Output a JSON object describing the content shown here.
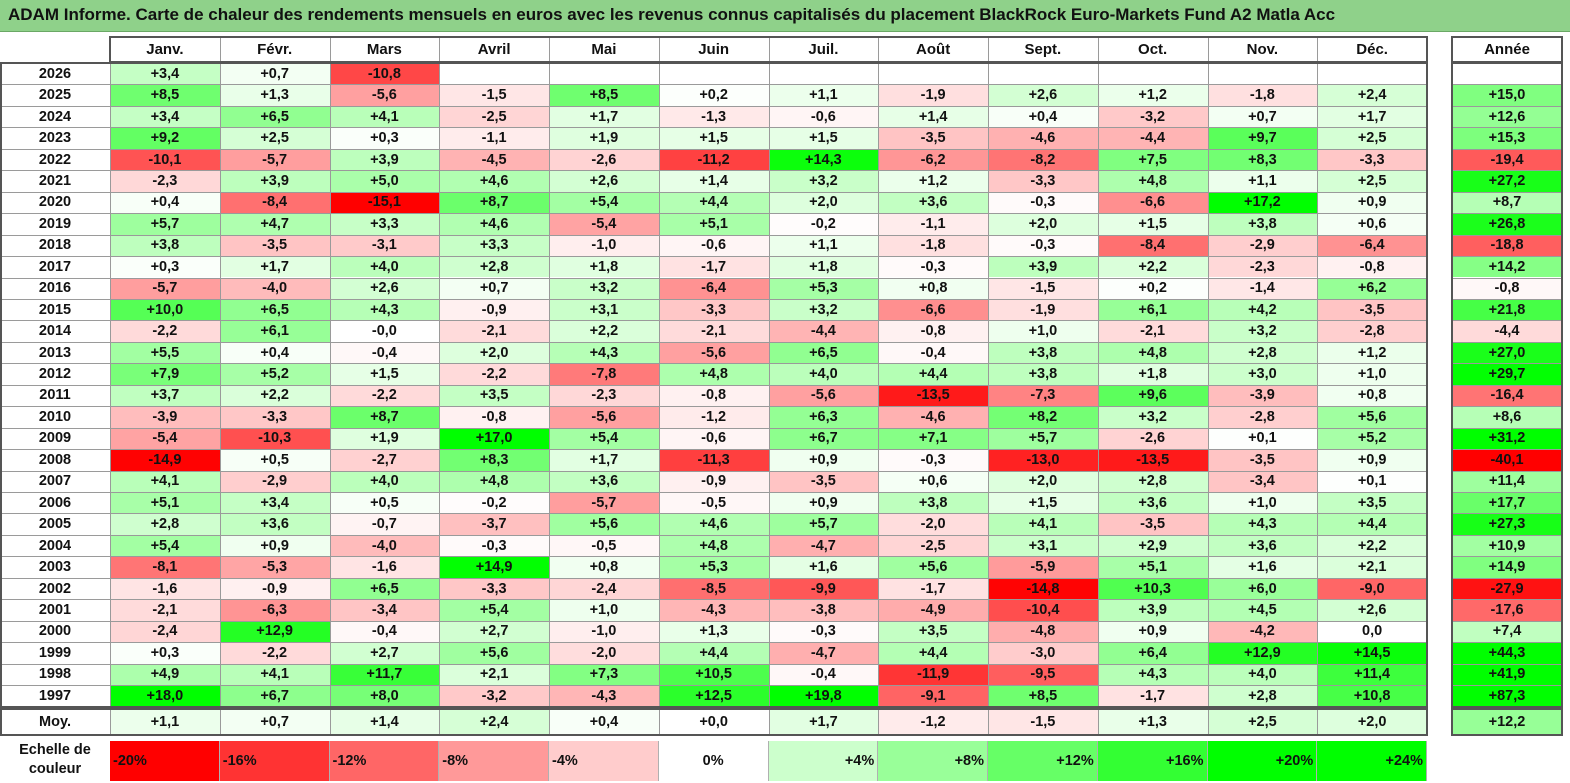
{
  "title": "ADAM Informe. Carte de chaleur des rendements mensuels en euros avec les revenus connus capitalisés du placement BlackRock Euro-Markets Fund A2 Matla Acc",
  "chart_data": {
    "type": "heatmap",
    "title": "ADAM Informe. Carte de chaleur des rendements mensuels en euros avec les revenus connus capitalisés du placement BlackRock Euro-Markets Fund A2 Matla Acc",
    "months": [
      "Janv.",
      "Févr.",
      "Mars",
      "Avril",
      "Mai",
      "Juin",
      "Juil.",
      "Août",
      "Sept.",
      "Oct.",
      "Nov.",
      "Déc."
    ],
    "year_header": "Année",
    "rows": [
      {
        "year": "2026",
        "months": [
          "+3,4",
          "+0,7",
          "-10,8",
          "",
          "",
          "",
          "",
          "",
          "",
          "",
          "",
          ""
        ],
        "annual": ""
      },
      {
        "year": "2025",
        "months": [
          "+8,5",
          "+1,3",
          "-5,6",
          "-1,5",
          "+8,5",
          "+0,2",
          "+1,1",
          "-1,9",
          "+2,6",
          "+1,2",
          "-1,8",
          "+2,4"
        ],
        "annual": "+15,0"
      },
      {
        "year": "2024",
        "months": [
          "+3,4",
          "+6,5",
          "+4,1",
          "-2,5",
          "+1,7",
          "-1,3",
          "-0,6",
          "+1,4",
          "+0,4",
          "-3,2",
          "+0,7",
          "+1,7"
        ],
        "annual": "+12,6"
      },
      {
        "year": "2023",
        "months": [
          "+9,2",
          "+2,5",
          "+0,3",
          "-1,1",
          "+1,9",
          "+1,5",
          "+1,5",
          "-3,5",
          "-4,6",
          "-4,4",
          "+9,7",
          "+2,5"
        ],
        "annual": "+15,3"
      },
      {
        "year": "2022",
        "months": [
          "-10,1",
          "-5,7",
          "+3,9",
          "-4,5",
          "-2,6",
          "-11,2",
          "+14,3",
          "-6,2",
          "-8,2",
          "+7,5",
          "+8,3",
          "-3,3"
        ],
        "annual": "-19,4"
      },
      {
        "year": "2021",
        "months": [
          "-2,3",
          "+3,9",
          "+5,0",
          "+4,6",
          "+2,6",
          "+1,4",
          "+3,2",
          "+1,2",
          "-3,3",
          "+4,8",
          "+1,1",
          "+2,5"
        ],
        "annual": "+27,2"
      },
      {
        "year": "2020",
        "months": [
          "+0,4",
          "-8,4",
          "-15,1",
          "+8,7",
          "+5,4",
          "+4,4",
          "+2,0",
          "+3,6",
          "-0,3",
          "-6,6",
          "+17,2",
          "+0,9"
        ],
        "annual": "+8,7"
      },
      {
        "year": "2019",
        "months": [
          "+5,7",
          "+4,7",
          "+3,3",
          "+4,6",
          "-5,4",
          "+5,1",
          "-0,2",
          "-1,1",
          "+2,0",
          "+1,5",
          "+3,8",
          "+0,6"
        ],
        "annual": "+26,8"
      },
      {
        "year": "2018",
        "months": [
          "+3,8",
          "-3,5",
          "-3,1",
          "+3,3",
          "-1,0",
          "-0,6",
          "+1,1",
          "-1,8",
          "-0,3",
          "-8,4",
          "-2,9",
          "-6,4"
        ],
        "annual": "-18,8"
      },
      {
        "year": "2017",
        "months": [
          "+0,3",
          "+1,7",
          "+4,0",
          "+2,8",
          "+1,8",
          "-1,7",
          "+1,8",
          "-0,3",
          "+3,9",
          "+2,2",
          "-2,3",
          "-0,8"
        ],
        "annual": "+14,2"
      },
      {
        "year": "2016",
        "months": [
          "-5,7",
          "-4,0",
          "+2,6",
          "+0,7",
          "+3,2",
          "-6,4",
          "+5,3",
          "+0,8",
          "-1,5",
          "+0,2",
          "-1,4",
          "+6,2"
        ],
        "annual": "-0,8"
      },
      {
        "year": "2015",
        "months": [
          "+10,0",
          "+6,5",
          "+4,3",
          "-0,9",
          "+3,1",
          "-3,3",
          "+3,2",
          "-6,6",
          "-1,9",
          "+6,1",
          "+4,2",
          "-3,5"
        ],
        "annual": "+21,8"
      },
      {
        "year": "2014",
        "months": [
          "-2,2",
          "+6,1",
          "-0,0",
          "-2,1",
          "+2,2",
          "-2,1",
          "-4,4",
          "-0,8",
          "+1,0",
          "-2,1",
          "+3,2",
          "-2,8"
        ],
        "annual": "-4,4"
      },
      {
        "year": "2013",
        "months": [
          "+5,5",
          "+0,4",
          "-0,4",
          "+2,0",
          "+4,3",
          "-5,6",
          "+6,5",
          "-0,4",
          "+3,8",
          "+4,8",
          "+2,8",
          "+1,2"
        ],
        "annual": "+27,0"
      },
      {
        "year": "2012",
        "months": [
          "+7,9",
          "+5,2",
          "+1,5",
          "-2,2",
          "-7,8",
          "+4,8",
          "+4,0",
          "+4,4",
          "+3,8",
          "+1,8",
          "+3,0",
          "+1,0"
        ],
        "annual": "+29,7"
      },
      {
        "year": "2011",
        "months": [
          "+3,7",
          "+2,2",
          "-2,2",
          "+3,5",
          "-2,3",
          "-0,8",
          "-5,6",
          "-13,5",
          "-7,3",
          "+9,6",
          "-3,9",
          "+0,8"
        ],
        "annual": "-16,4"
      },
      {
        "year": "2010",
        "months": [
          "-3,9",
          "-3,3",
          "+8,7",
          "-0,8",
          "-5,6",
          "-1,2",
          "+6,3",
          "-4,6",
          "+8,2",
          "+3,2",
          "-2,8",
          "+5,6"
        ],
        "annual": "+8,6"
      },
      {
        "year": "2009",
        "months": [
          "-5,4",
          "-10,3",
          "+1,9",
          "+17,0",
          "+5,4",
          "-0,6",
          "+6,7",
          "+7,1",
          "+5,7",
          "-2,6",
          "+0,1",
          "+5,2"
        ],
        "annual": "+31,2"
      },
      {
        "year": "2008",
        "months": [
          "-14,9",
          "+0,5",
          "-2,7",
          "+8,3",
          "+1,7",
          "-11,3",
          "+0,9",
          "-0,3",
          "-13,0",
          "-13,5",
          "-3,5",
          "+0,9"
        ],
        "annual": "-40,1"
      },
      {
        "year": "2007",
        "months": [
          "+4,1",
          "-2,9",
          "+4,0",
          "+4,8",
          "+3,6",
          "-0,9",
          "-3,5",
          "+0,6",
          "+2,0",
          "+2,8",
          "-3,4",
          "+0,1"
        ],
        "annual": "+11,4"
      },
      {
        "year": "2006",
        "months": [
          "+5,1",
          "+3,4",
          "+0,5",
          "-0,2",
          "-5,7",
          "-0,5",
          "+0,9",
          "+3,8",
          "+1,5",
          "+3,6",
          "+1,0",
          "+3,5"
        ],
        "annual": "+17,7"
      },
      {
        "year": "2005",
        "months": [
          "+2,8",
          "+3,6",
          "-0,7",
          "-3,7",
          "+5,6",
          "+4,6",
          "+5,7",
          "-2,0",
          "+4,1",
          "-3,5",
          "+4,3",
          "+4,4"
        ],
        "annual": "+27,3"
      },
      {
        "year": "2004",
        "months": [
          "+5,4",
          "+0,9",
          "-4,0",
          "-0,3",
          "-0,5",
          "+4,8",
          "-4,7",
          "-2,5",
          "+3,1",
          "+2,9",
          "+3,6",
          "+2,2"
        ],
        "annual": "+10,9"
      },
      {
        "year": "2003",
        "months": [
          "-8,1",
          "-5,3",
          "-1,6",
          "+14,9",
          "+0,8",
          "+5,3",
          "+1,6",
          "+5,6",
          "-5,9",
          "+5,1",
          "+1,6",
          "+2,1"
        ],
        "annual": "+14,9"
      },
      {
        "year": "2002",
        "months": [
          "-1,6",
          "-0,9",
          "+6,5",
          "-3,3",
          "-2,4",
          "-8,5",
          "-9,9",
          "-1,7",
          "-14,8",
          "+10,3",
          "+6,0",
          "-9,0"
        ],
        "annual": "-27,9"
      },
      {
        "year": "2001",
        "months": [
          "-2,1",
          "-6,3",
          "-3,4",
          "+5,4",
          "+1,0",
          "-4,3",
          "-3,8",
          "-4,9",
          "-10,4",
          "+3,9",
          "+4,5",
          "+2,6"
        ],
        "annual": "-17,6"
      },
      {
        "year": "2000",
        "months": [
          "-2,4",
          "+12,9",
          "-0,4",
          "+2,7",
          "-1,0",
          "+1,3",
          "-0,3",
          "+3,5",
          "-4,8",
          "+0,9",
          "-4,2",
          "0,0"
        ],
        "annual": "+7,4"
      },
      {
        "year": "1999",
        "months": [
          "+0,3",
          "-2,2",
          "+2,7",
          "+5,6",
          "-2,0",
          "+4,4",
          "-4,7",
          "+4,4",
          "-3,0",
          "+6,4",
          "+12,9",
          "+14,5"
        ],
        "annual": "+44,3"
      },
      {
        "year": "1998",
        "months": [
          "+4,9",
          "+4,1",
          "+11,7",
          "+2,1",
          "+7,3",
          "+10,5",
          "-0,4",
          "-11,9",
          "-9,5",
          "+4,3",
          "+4,0",
          "+11,4"
        ],
        "annual": "+41,9"
      },
      {
        "year": "1997",
        "months": [
          "+18,0",
          "+6,7",
          "+8,0",
          "-3,2",
          "-4,3",
          "+12,5",
          "+19,8",
          "-9,1",
          "+8,5",
          "-1,7",
          "+2,8",
          "+10,8"
        ],
        "annual": "+87,3"
      }
    ],
    "average": {
      "label": "Moy.",
      "months": [
        "+1,1",
        "+0,7",
        "+1,4",
        "+2,4",
        "+0,4",
        "+0,0",
        "+1,7",
        "-1,2",
        "-1,5",
        "+1,3",
        "+2,5",
        "+2,0"
      ],
      "annual": "+12,2"
    },
    "color_scale": {
      "label": "Echelle de couleur",
      "stops": [
        "-20%",
        "-16%",
        "-12%",
        "-8%",
        "-4%",
        "0%",
        "+4%",
        "+8%",
        "+12%",
        "+16%",
        "+20%",
        "+24%"
      ],
      "stop_values": [
        -20,
        -16,
        -12,
        -8,
        -4,
        0,
        4,
        8,
        12,
        16,
        20,
        24
      ],
      "negative_color": "#ff0000",
      "positive_color": "#00ff00",
      "neutral_color": "#ffffff"
    }
  }
}
